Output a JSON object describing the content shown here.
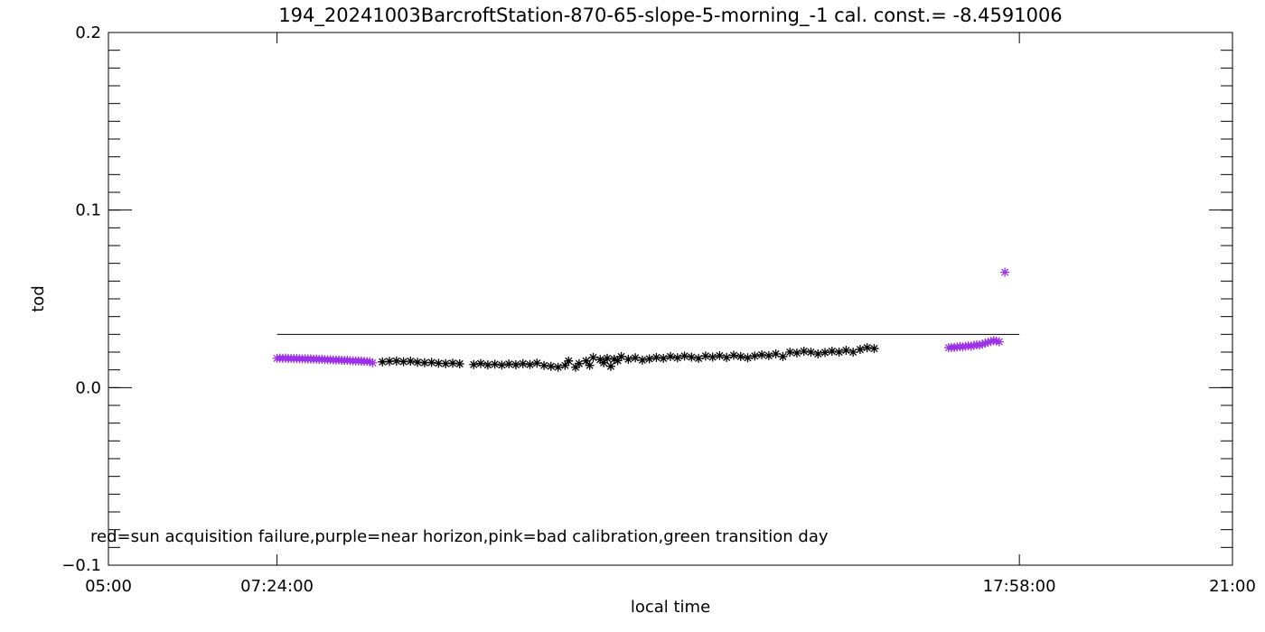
{
  "chart_data": {
    "type": "scatter",
    "title": "194_20241003BarcroftStation-870-65-slope-5-morning_-1 cal. const.= -8.4591006",
    "xlabel": "local time",
    "ylabel": "tod",
    "x_unit": "hours",
    "xlim": [
      5.0,
      21.0
    ],
    "ylim": [
      -0.1,
      0.2
    ],
    "x_ticks": [
      {
        "x": 5.0,
        "label": "05:00"
      },
      {
        "x": 7.4,
        "label": "07:24:00"
      },
      {
        "x": 17.9667,
        "label": "17:58:00"
      },
      {
        "x": 21.0,
        "label": "21:00"
      }
    ],
    "y_ticks": [
      {
        "y": -0.1,
        "label": "−0.1"
      },
      {
        "y": 0.0,
        "label": "0.0"
      },
      {
        "y": 0.1,
        "label": "0.1"
      },
      {
        "y": 0.2,
        "label": "0.2"
      }
    ],
    "reference_line": {
      "y": 0.03,
      "x_from": 7.4,
      "x_to": 17.9667
    },
    "legend_text": "red=sun acquisition failure,purple=near horizon,pink=bad calibration,green transition day",
    "series": [
      {
        "color": "#9b30e8",
        "marker": "asterisk",
        "points": [
          [
            7.4,
            0.0165
          ],
          [
            7.44,
            0.0166
          ],
          [
            7.48,
            0.0165
          ],
          [
            7.52,
            0.0166
          ],
          [
            7.56,
            0.0164
          ],
          [
            7.6,
            0.0165
          ],
          [
            7.64,
            0.0163
          ],
          [
            7.68,
            0.0164
          ],
          [
            7.72,
            0.0163
          ],
          [
            7.76,
            0.0162
          ],
          [
            7.8,
            0.0163
          ],
          [
            7.84,
            0.0161
          ],
          [
            7.88,
            0.0162
          ],
          [
            7.92,
            0.016
          ],
          [
            7.96,
            0.0161
          ],
          [
            8.0,
            0.0159
          ],
          [
            8.04,
            0.016
          ],
          [
            8.08,
            0.0158
          ],
          [
            8.12,
            0.0157
          ],
          [
            8.16,
            0.0158
          ],
          [
            8.2,
            0.0156
          ],
          [
            8.24,
            0.0155
          ],
          [
            8.28,
            0.0156
          ],
          [
            8.32,
            0.0154
          ],
          [
            8.36,
            0.0153
          ],
          [
            8.4,
            0.0154
          ],
          [
            8.44,
            0.0152
          ],
          [
            8.48,
            0.0151
          ],
          [
            8.52,
            0.015
          ],
          [
            8.56,
            0.0151
          ],
          [
            8.6,
            0.0149
          ],
          [
            8.64,
            0.0148
          ],
          [
            8.68,
            0.0147
          ],
          [
            8.72,
            0.0146
          ],
          [
            8.76,
            0.014
          ],
          [
            16.96,
            0.0225
          ],
          [
            17.0,
            0.0227
          ],
          [
            17.04,
            0.0226
          ],
          [
            17.08,
            0.0229
          ],
          [
            17.12,
            0.0231
          ],
          [
            17.16,
            0.023
          ],
          [
            17.2,
            0.0233
          ],
          [
            17.24,
            0.0236
          ],
          [
            17.28,
            0.0234
          ],
          [
            17.32,
            0.0238
          ],
          [
            17.36,
            0.0241
          ],
          [
            17.4,
            0.024
          ],
          [
            17.44,
            0.0245
          ],
          [
            17.48,
            0.025
          ],
          [
            17.52,
            0.0255
          ],
          [
            17.56,
            0.026
          ],
          [
            17.6,
            0.0265
          ],
          [
            17.64,
            0.0262
          ],
          [
            17.68,
            0.0258
          ],
          [
            17.76,
            0.065
          ]
        ]
      },
      {
        "color": "#000000",
        "marker": "asterisk",
        "points": [
          [
            8.9,
            0.0145
          ],
          [
            9.0,
            0.0148
          ],
          [
            9.1,
            0.015
          ],
          [
            9.2,
            0.0146
          ],
          [
            9.3,
            0.0149
          ],
          [
            9.4,
            0.0143
          ],
          [
            9.5,
            0.014
          ],
          [
            9.6,
            0.0142
          ],
          [
            9.7,
            0.0137
          ],
          [
            9.8,
            0.0135
          ],
          [
            9.9,
            0.0138
          ],
          [
            10.0,
            0.0134
          ],
          [
            10.2,
            0.013
          ],
          [
            10.3,
            0.0136
          ],
          [
            10.4,
            0.0128
          ],
          [
            10.5,
            0.0132
          ],
          [
            10.6,
            0.0127
          ],
          [
            10.7,
            0.0133
          ],
          [
            10.8,
            0.0129
          ],
          [
            10.9,
            0.0135
          ],
          [
            11.0,
            0.013
          ],
          [
            11.1,
            0.0138
          ],
          [
            11.2,
            0.0125
          ],
          [
            11.3,
            0.012
          ],
          [
            11.4,
            0.0115
          ],
          [
            11.5,
            0.0125
          ],
          [
            11.55,
            0.015
          ],
          [
            11.65,
            0.0115
          ],
          [
            11.7,
            0.0135
          ],
          [
            11.8,
            0.015
          ],
          [
            11.85,
            0.0125
          ],
          [
            11.9,
            0.017
          ],
          [
            12.0,
            0.0158
          ],
          [
            12.05,
            0.014
          ],
          [
            12.1,
            0.0165
          ],
          [
            12.15,
            0.012
          ],
          [
            12.2,
            0.016
          ],
          [
            12.25,
            0.0152
          ],
          [
            12.3,
            0.0175
          ],
          [
            12.4,
            0.016
          ],
          [
            12.5,
            0.0168
          ],
          [
            12.6,
            0.0155
          ],
          [
            12.7,
            0.0162
          ],
          [
            12.8,
            0.017
          ],
          [
            12.9,
            0.0165
          ],
          [
            13.0,
            0.0175
          ],
          [
            13.1,
            0.0168
          ],
          [
            13.2,
            0.0178
          ],
          [
            13.3,
            0.0172
          ],
          [
            13.4,
            0.0165
          ],
          [
            13.5,
            0.0178
          ],
          [
            13.6,
            0.0172
          ],
          [
            13.7,
            0.018
          ],
          [
            13.8,
            0.017
          ],
          [
            13.9,
            0.0182
          ],
          [
            14.0,
            0.0175
          ],
          [
            14.1,
            0.0168
          ],
          [
            14.2,
            0.0178
          ],
          [
            14.3,
            0.0185
          ],
          [
            14.4,
            0.018
          ],
          [
            14.5,
            0.019
          ],
          [
            14.6,
            0.0175
          ],
          [
            14.7,
            0.02
          ],
          [
            14.8,
            0.0195
          ],
          [
            14.9,
            0.0205
          ],
          [
            15.0,
            0.02
          ],
          [
            15.1,
            0.019
          ],
          [
            15.2,
            0.0198
          ],
          [
            15.3,
            0.0205
          ],
          [
            15.4,
            0.02
          ],
          [
            15.5,
            0.021
          ],
          [
            15.6,
            0.02
          ],
          [
            15.7,
            0.0215
          ],
          [
            15.8,
            0.0225
          ],
          [
            15.9,
            0.022
          ]
        ]
      }
    ]
  }
}
